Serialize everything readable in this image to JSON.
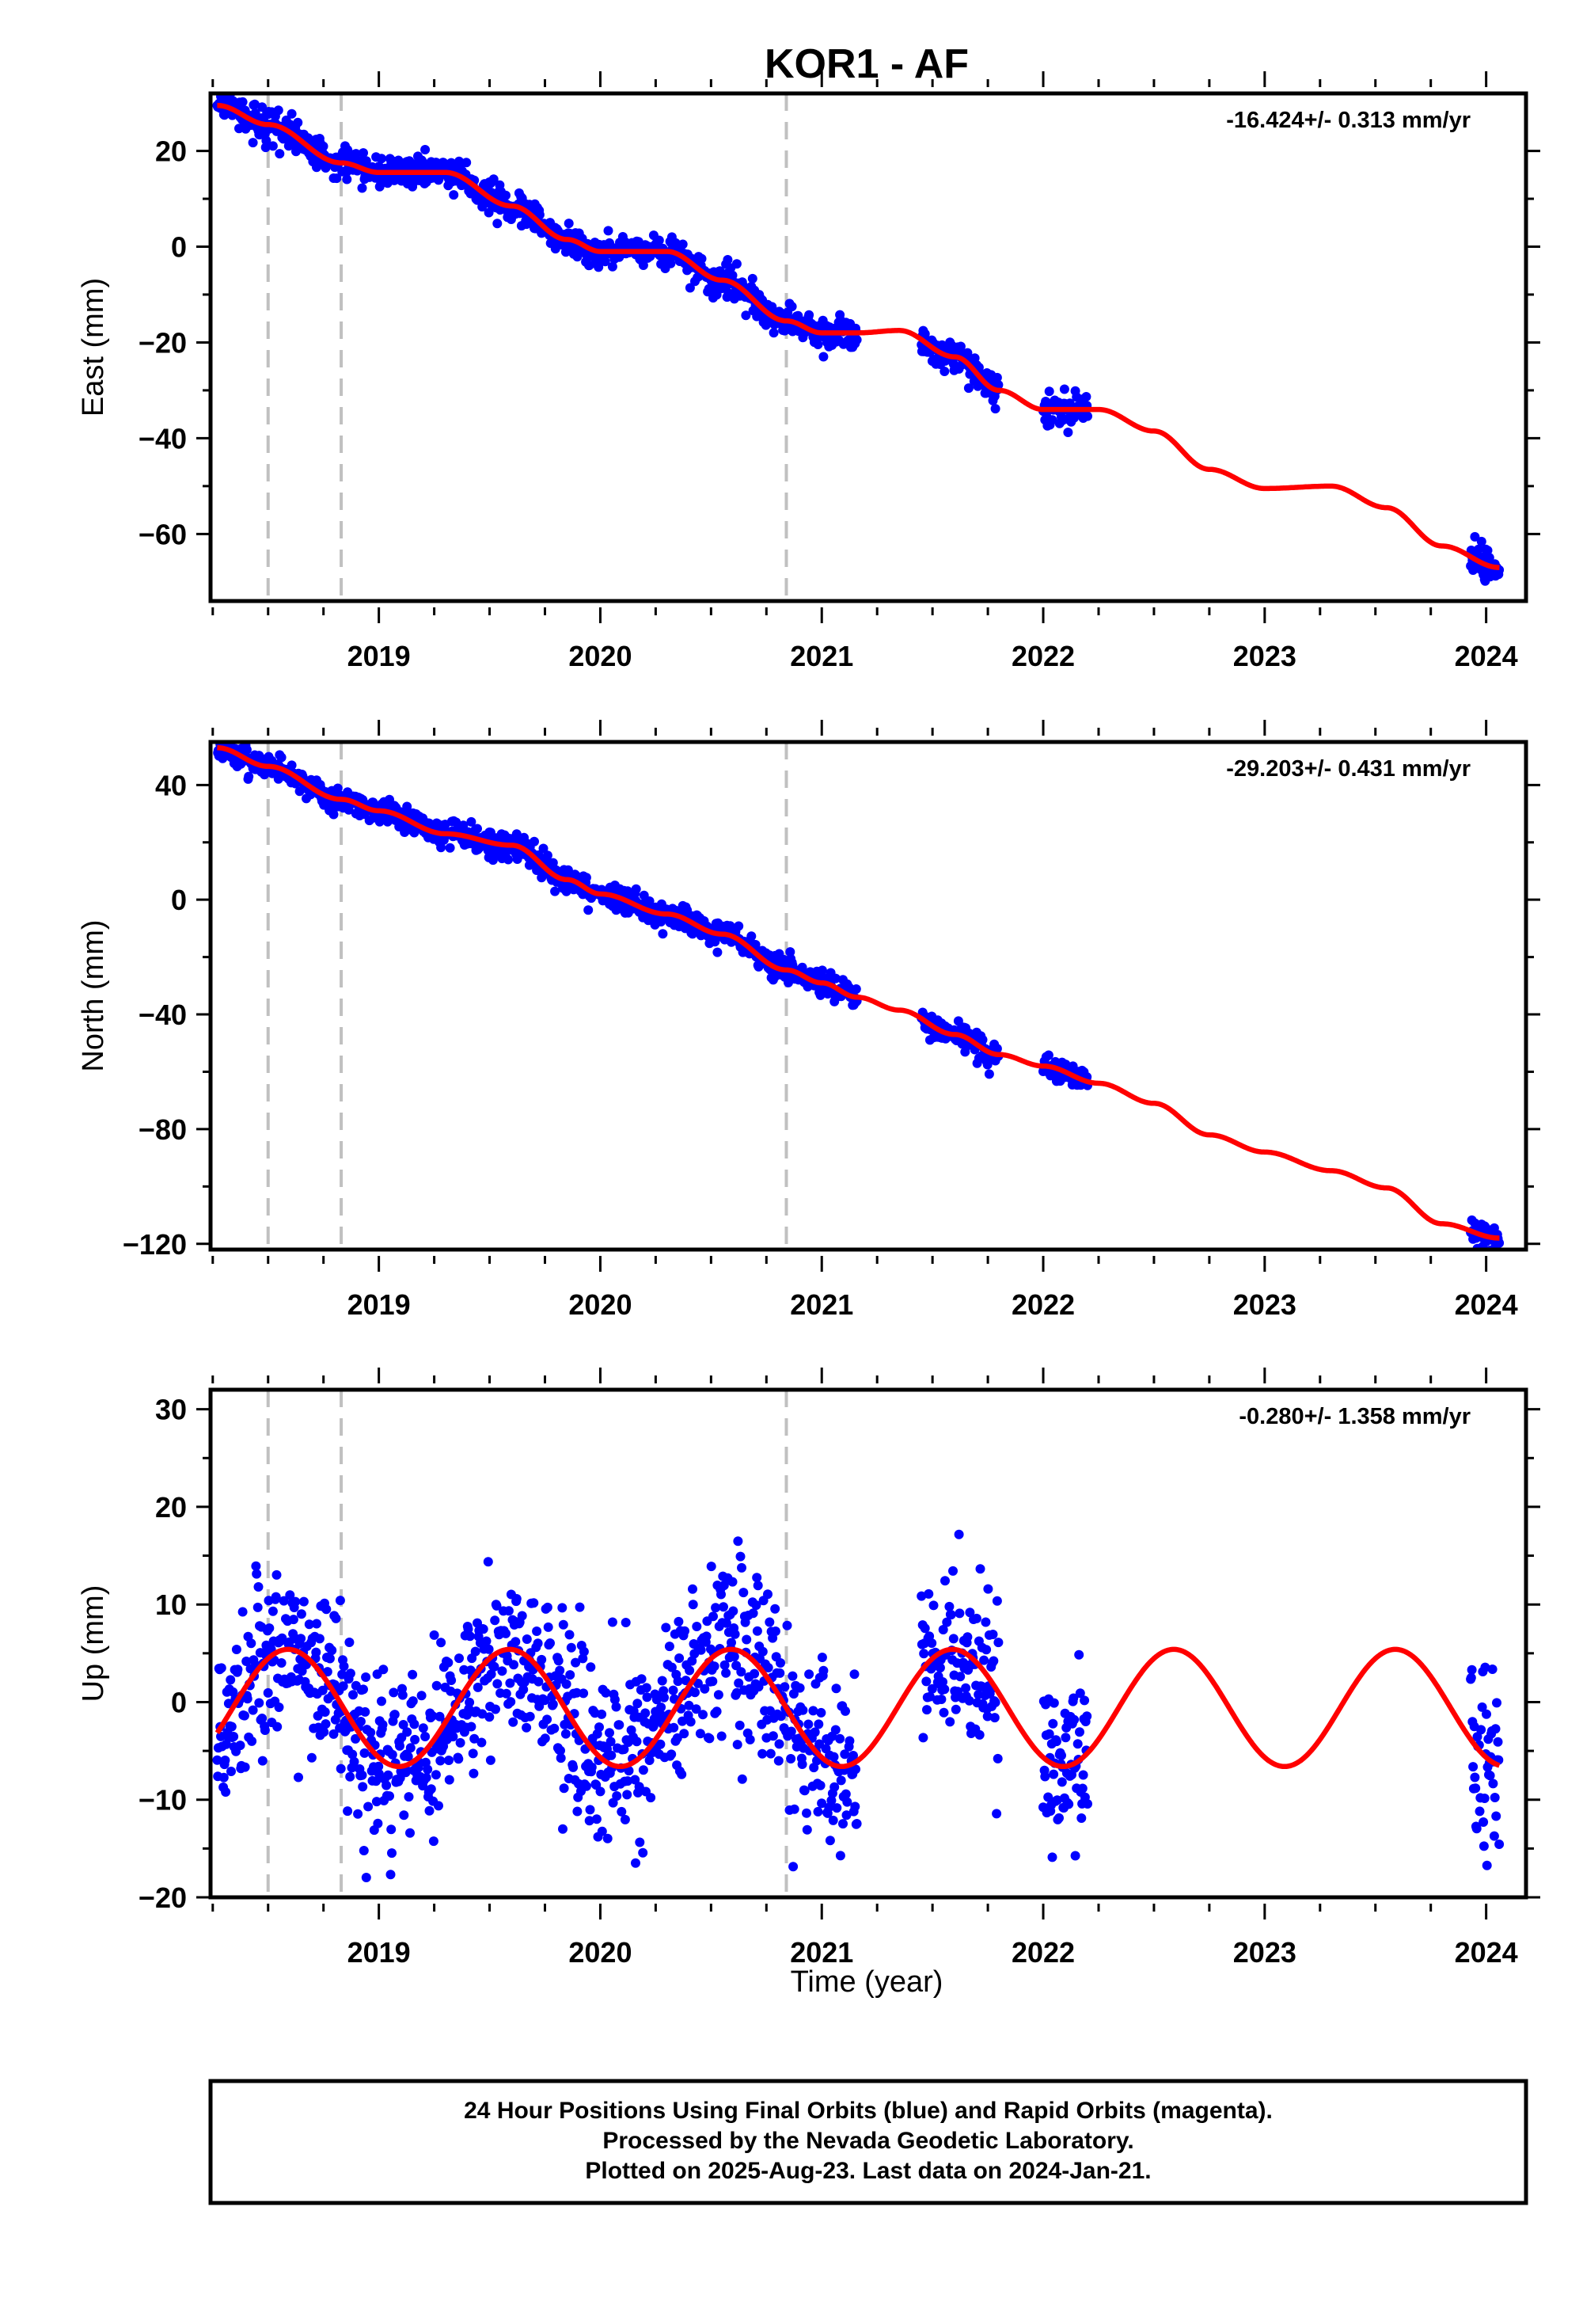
{
  "title": "KOR1 - AF",
  "x_axis": {
    "label": "Time (year)",
    "range": [
      2018.24,
      2024.18
    ],
    "ticks": [
      2019,
      2020,
      2021,
      2022,
      2023,
      2024
    ]
  },
  "colors": {
    "data": "#0000ff",
    "model": "#ff0000",
    "steps": "#c0c0c0",
    "frame": "#000000"
  },
  "footer": {
    "lines": [
      "24 Hour Positions Using Final Orbits (blue) and Rapid Orbits (magenta).",
      "Processed by the Nevada Geodetic Laboratory.",
      "Plotted on 2025-Aug-23. Last data on 2024-Jan-21."
    ]
  },
  "chart_data": [
    {
      "type": "scatter",
      "component": "east",
      "ylabel": "East (mm)",
      "ylim": [
        -74,
        32
      ],
      "yticks": [
        20,
        0,
        -20,
        -40,
        -60
      ],
      "rate_label": "-16.424+/- 0.313 mm/yr",
      "steps": [
        2018.5,
        2018.83,
        2020.84
      ],
      "data_segments": [
        [
          2018.27,
          2021.16
        ],
        [
          2021.45,
          2021.8
        ],
        [
          2022.0,
          2022.2
        ],
        [
          2023.93,
          2024.06
        ]
      ],
      "trend": {
        "x": [
          2018.27,
          2018.5,
          2018.83,
          2019.0,
          2019.3,
          2019.6,
          2019.85,
          2020.0,
          2020.3,
          2020.55,
          2020.84,
          2021.0,
          2021.16,
          2021.35,
          2021.6,
          2021.8,
          2022.0,
          2022.25,
          2022.5,
          2022.75,
          2023.0,
          2023.3,
          2023.55,
          2023.8,
          2024.06
        ],
        "y": [
          29.5,
          25.5,
          17.5,
          15.5,
          15.5,
          8.5,
          1.5,
          -1.0,
          -1.0,
          -7.0,
          -15.5,
          -18.0,
          -18.0,
          -17.5,
          -23.0,
          -30.0,
          -34.0,
          -34.0,
          -38.5,
          -46.5,
          -50.5,
          -50.0,
          -54.5,
          -62.5,
          -67.0
        ]
      },
      "scatter": 1.6
    },
    {
      "type": "scatter",
      "component": "north",
      "ylabel": "North (mm)",
      "ylim": [
        -122,
        55
      ],
      "yticks": [
        40,
        0,
        -40,
        -80,
        -120
      ],
      "rate_label": "-29.203+/- 0.431 mm/yr",
      "steps": [
        2018.5,
        2018.83,
        2020.84
      ],
      "data_segments": [
        [
          2018.27,
          2021.16
        ],
        [
          2021.45,
          2021.8
        ],
        [
          2022.0,
          2022.2
        ],
        [
          2023.93,
          2024.06
        ]
      ],
      "trend": {
        "x": [
          2018.27,
          2018.5,
          2018.83,
          2019.0,
          2019.3,
          2019.6,
          2019.85,
          2020.0,
          2020.3,
          2020.55,
          2020.84,
          2021.0,
          2021.16,
          2021.35,
          2021.6,
          2021.8,
          2022.0,
          2022.25,
          2022.5,
          2022.75,
          2023.0,
          2023.3,
          2023.55,
          2023.8,
          2024.06
        ],
        "y": [
          53.0,
          46.5,
          35.0,
          31.0,
          23.0,
          19.0,
          7.0,
          2.0,
          -5.0,
          -12.0,
          -24.5,
          -29.0,
          -34.0,
          -38.5,
          -47.0,
          -54.0,
          -58.0,
          -64.0,
          -71.0,
          -82.0,
          -88.0,
          -94.5,
          -100.5,
          -113.0,
          -118.0
        ]
      },
      "scatter": 2.2
    },
    {
      "type": "scatter",
      "component": "up",
      "ylabel": "Up (mm)",
      "ylim": [
        -20,
        32
      ],
      "yticks": [
        30,
        20,
        10,
        0,
        -10,
        -20
      ],
      "rate_label": "-0.280+/- 1.358 mm/yr",
      "steps": [
        2018.5,
        2018.83,
        2020.84
      ],
      "data_segments": [
        [
          2018.27,
          2021.16
        ],
        [
          2021.45,
          2021.8
        ],
        [
          2022.0,
          2022.2
        ],
        [
          2023.93,
          2024.06
        ]
      ],
      "seasonal": {
        "mean": -0.6,
        "amplitude": 6.0,
        "peak_year_fraction": 0.59
      },
      "scatter": 4.5
    }
  ]
}
